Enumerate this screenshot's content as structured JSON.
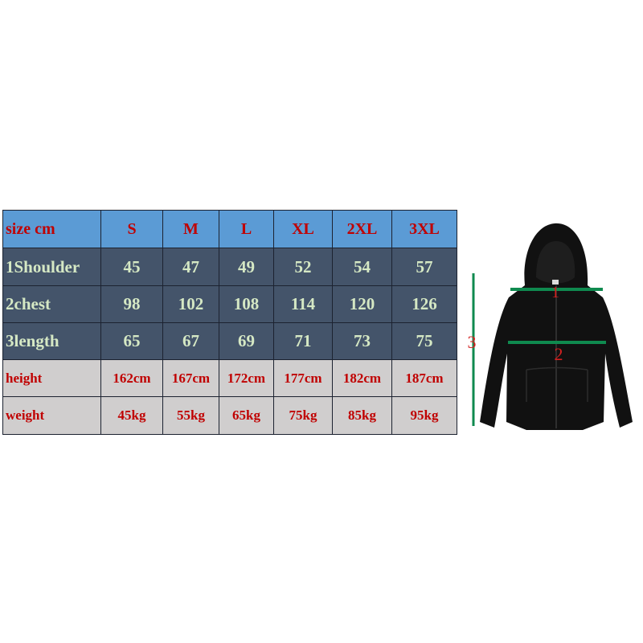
{
  "table": {
    "header": [
      "size cm",
      "S",
      "M",
      "L",
      "XL",
      "2XL",
      "3XL"
    ],
    "rows": [
      {
        "style": "dark",
        "cells": [
          "1Shoulder",
          "45",
          "47",
          "49",
          "52",
          "54",
          "57"
        ]
      },
      {
        "style": "dark",
        "cells": [
          "2chest",
          "98",
          "102",
          "108",
          "114",
          "120",
          "126"
        ]
      },
      {
        "style": "dark",
        "cells": [
          "3length",
          "65",
          "67",
          "69",
          "71",
          "73",
          "75"
        ]
      },
      {
        "style": "gray",
        "cells": [
          "height",
          "162cm",
          "167cm",
          "172cm",
          "177cm",
          "182cm",
          "187cm"
        ]
      },
      {
        "style": "gray",
        "cells": [
          "weight",
          "45kg",
          "55kg",
          "65kg",
          "75kg",
          "85kg",
          "95kg"
        ]
      }
    ]
  },
  "figure": {
    "labels": {
      "shoulder": "1",
      "chest": "2",
      "length": "3"
    },
    "colors": {
      "garment": "#111111",
      "measure_line": "#0f8a4f",
      "label": "#d22020"
    }
  }
}
